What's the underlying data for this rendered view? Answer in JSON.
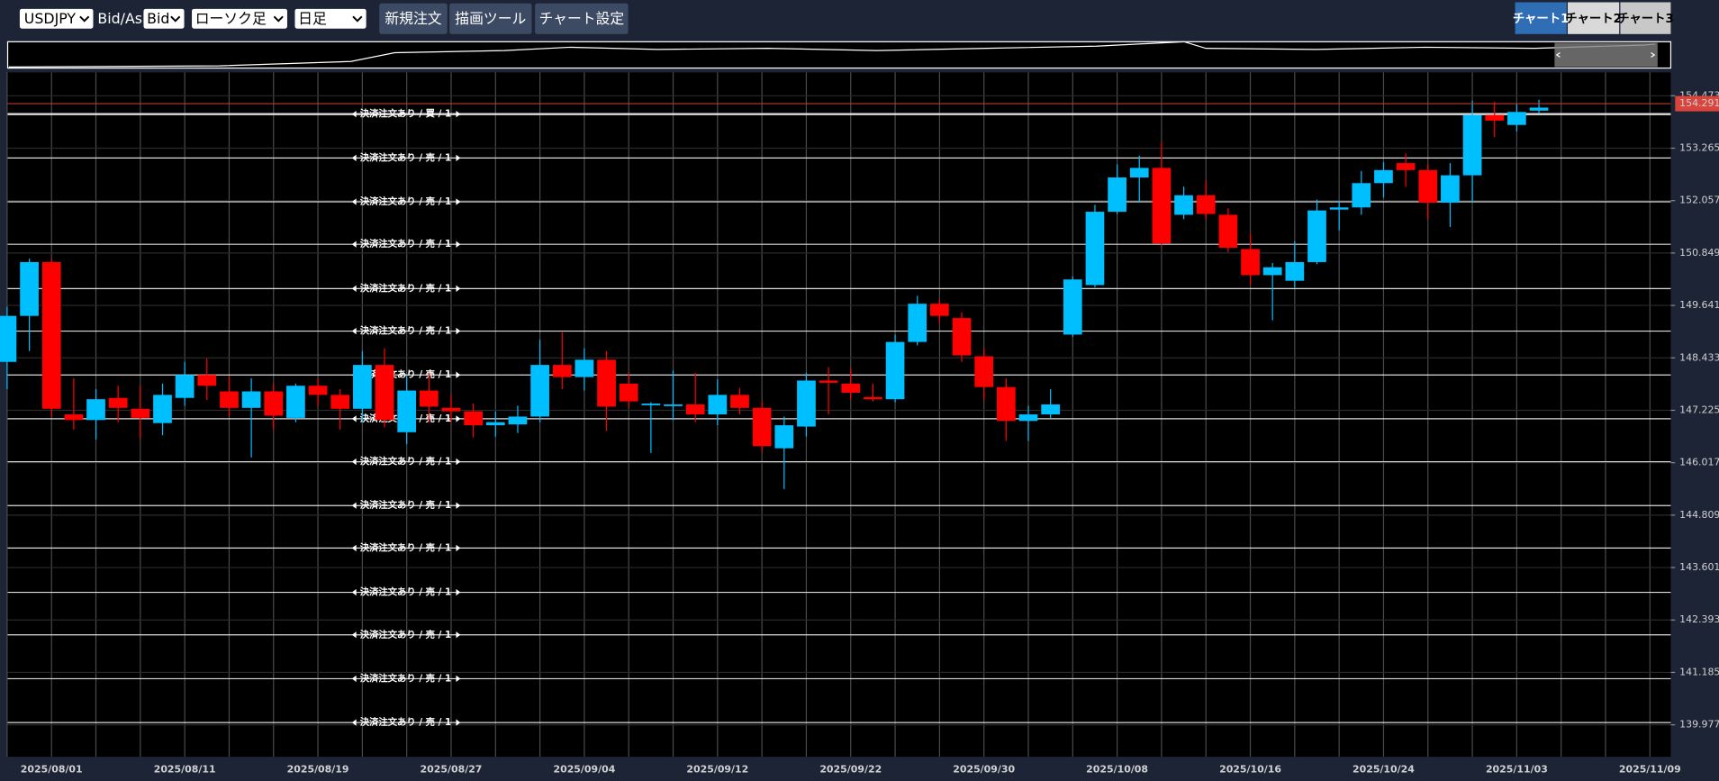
{
  "toolbar": {
    "symbol": "USDJPY",
    "price_label": "Bid/Ask",
    "price_type": "Bid",
    "chart_style": "ローソク足",
    "timeframe": "日足",
    "buttons": [
      "新規注文",
      "描画ツール",
      "チャート設定"
    ],
    "tabs": [
      "チャート1",
      "チャート2",
      "チャート3"
    ]
  },
  "chart_data": {
    "type": "candlestick",
    "categories": [
      null,
      null,
      "2025/08/01",
      null,
      null,
      null,
      null,
      null,
      "2025/08/11",
      null,
      null,
      null,
      null,
      null,
      "2025/08/19",
      null,
      null,
      null,
      null,
      null,
      "2025/08/27",
      null,
      null,
      null,
      null,
      null,
      "2025/09/04",
      null,
      null,
      null,
      null,
      null,
      "2025/09/12",
      null,
      null,
      null,
      null,
      null,
      "2025/09/22",
      null,
      null,
      null,
      null,
      null,
      "2025/09/30",
      null,
      null,
      null,
      null,
      null,
      "2025/10/08",
      null,
      null,
      null,
      null,
      null,
      "2025/10/16",
      null,
      null,
      null,
      null,
      null,
      "2025/10/24",
      null,
      null,
      null,
      null,
      null,
      "2025/11/03",
      null,
      null,
      null,
      null,
      null,
      "2025/11/09"
    ],
    "open": [
      148.34,
      149.4,
      150.64,
      147.13,
      147.0,
      147.51,
      147.26,
      146.93,
      147.51,
      148.04,
      147.66,
      147.28,
      147.66,
      147.05,
      147.79,
      147.58,
      147.26,
      148.27,
      146.72,
      147.68,
      147.28,
      147.2,
      146.88,
      146.9,
      147.08,
      148.27,
      147.99,
      148.39,
      147.84,
      147.36,
      147.33,
      147.36,
      147.13,
      147.58,
      147.28,
      146.35,
      146.85,
      147.91,
      147.84,
      147.53,
      147.48,
      148.8,
      149.68,
      149.35,
      148.47,
      147.76,
      146.98,
      147.13,
      148.97,
      150.11,
      151.8,
      152.59,
      152.81,
      151.73,
      152.18,
      151.73,
      150.94,
      150.34,
      150.21,
      150.64,
      151.85,
      151.9,
      152.46,
      152.92,
      152.76,
      152.01,
      152.64,
      154.03,
      153.8,
      154.13,
      null,
      null,
      null,
      null,
      null
    ],
    "high": [
      149.61,
      150.72,
      150.72,
      147.96,
      147.71,
      147.79,
      147.79,
      147.84,
      148.34,
      148.42,
      148.01,
      147.96,
      147.84,
      147.84,
      147.96,
      147.71,
      148.59,
      148.65,
      148.01,
      148.09,
      147.58,
      147.38,
      147.2,
      147.33,
      148.85,
      149.02,
      148.65,
      148.59,
      148.09,
      147.41,
      148.14,
      148.09,
      147.94,
      147.74,
      147.43,
      147.08,
      148.09,
      148.22,
      148.19,
      147.84,
      148.97,
      149.86,
      149.78,
      149.48,
      148.65,
      147.96,
      147.33,
      147.71,
      150.31,
      151.96,
      152.89,
      153.09,
      153.4,
      152.38,
      152.51,
      151.88,
      151.3,
      150.62,
      151.12,
      152.08,
      152.06,
      152.74,
      152.94,
      153.14,
      152.89,
      152.92,
      154.36,
      154.33,
      154.28,
      154.38,
      null,
      null,
      null,
      null,
      null
    ],
    "low": [
      147.71,
      148.59,
      147.08,
      146.78,
      146.55,
      146.95,
      146.57,
      146.65,
      147.33,
      147.46,
      147.08,
      146.14,
      146.78,
      146.95,
      147.33,
      146.78,
      146.95,
      146.83,
      146.45,
      146.95,
      146.95,
      146.6,
      146.62,
      146.7,
      146.95,
      147.71,
      147.68,
      146.75,
      147.28,
      146.24,
      147.0,
      146.95,
      146.88,
      147.13,
      146.27,
      145.41,
      146.62,
      147.13,
      147.48,
      147.43,
      147.41,
      148.72,
      149.23,
      148.34,
      147.46,
      146.52,
      146.52,
      147.05,
      148.92,
      150.06,
      151.75,
      152.01,
      151.0,
      151.63,
      151.63,
      150.87,
      150.11,
      149.3,
      150.06,
      150.59,
      151.37,
      151.73,
      152.13,
      152.38,
      151.63,
      151.45,
      152.01,
      153.52,
      153.65,
      154.08,
      null,
      null,
      null,
      null,
      null
    ],
    "close": [
      149.4,
      150.64,
      147.26,
      147.0,
      147.48,
      147.28,
      147.05,
      147.58,
      148.04,
      147.79,
      147.28,
      147.66,
      147.1,
      147.79,
      147.58,
      147.26,
      148.27,
      147.0,
      147.68,
      147.31,
      147.2,
      146.88,
      146.95,
      147.08,
      148.27,
      147.99,
      148.39,
      147.31,
      147.43,
      147.38,
      147.36,
      147.13,
      147.58,
      147.28,
      146.4,
      146.88,
      147.91,
      147.86,
      147.63,
      147.48,
      148.8,
      149.68,
      149.4,
      148.49,
      147.76,
      146.98,
      147.13,
      147.36,
      150.24,
      151.8,
      152.59,
      152.81,
      151.07,
      152.18,
      151.75,
      150.97,
      150.34,
      150.52,
      150.64,
      151.83,
      151.9,
      152.46,
      152.76,
      152.76,
      152.01,
      152.64,
      154.03,
      153.9,
      154.1,
      154.2,
      null,
      null,
      null,
      null,
      null
    ],
    "up_color": "#00bfff",
    "down_color": "#ff0000",
    "ylim": [
      139.24,
      155.01
    ],
    "yticks": [
      154.473,
      153.265,
      152.057,
      150.849,
      149.641,
      148.433,
      147.225,
      146.017,
      144.809,
      143.601,
      142.393,
      141.185,
      139.977
    ],
    "grid": true,
    "current_price": 154.291,
    "order_lines": [
      {
        "label": "決済注文あり / 買 / 1",
        "value": 154.05
      },
      {
        "label": "決済注文あり / 売 / 1",
        "value": 153.04
      },
      {
        "label": "決済注文あり / 売 / 1",
        "value": 152.03
      },
      {
        "label": "決済注文あり / 売 / 1",
        "value": 151.05
      },
      {
        "label": "決済注文あり / 売 / 1",
        "value": 150.03
      },
      {
        "label": "決済注文あり / 売 / 1",
        "value": 149.05
      },
      {
        "label": "決済注文あり / 売 / 1",
        "value": 148.04
      },
      {
        "label": "決済注文あり / 売 / 1",
        "value": 147.03
      },
      {
        "label": "決済注文あり / 売 / 1",
        "value": 146.04
      },
      {
        "label": "決済注文あり / 売 / 1",
        "value": 145.03
      },
      {
        "label": "決済注文あり / 売 / 1",
        "value": 144.05
      },
      {
        "label": "決済注文あり / 売 / 1",
        "value": 143.03
      },
      {
        "label": "決済注文あり / 売 / 1",
        "value": 142.05
      },
      {
        "label": "決済注文あり / 売 / 1",
        "value": 141.04
      },
      {
        "label": "決済注文あり / 売 / 1",
        "value": 140.03
      }
    ]
  }
}
